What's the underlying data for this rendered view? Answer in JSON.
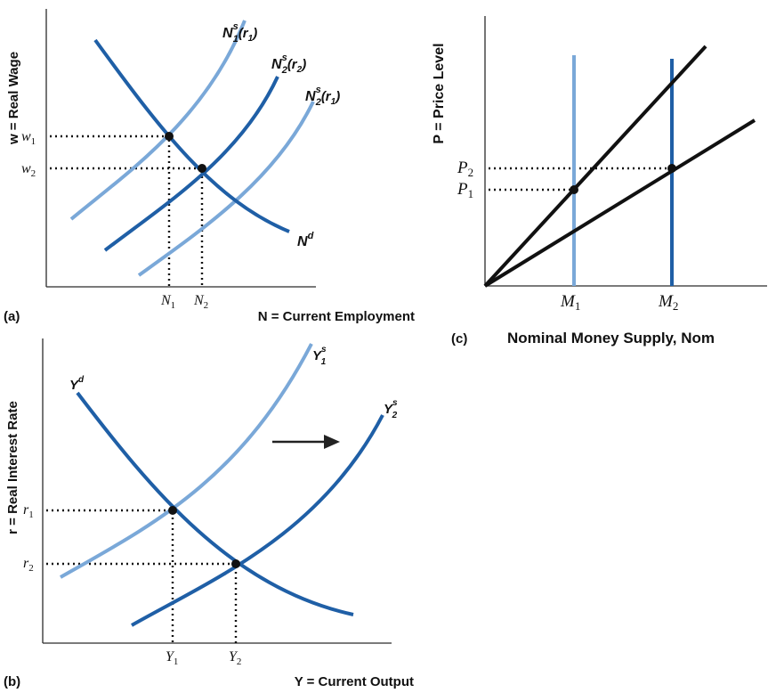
{
  "colors": {
    "dark_blue": "#1f5fa6",
    "light_blue": "#7aa8d8",
    "black": "#111111",
    "axis": "#2b2b2b",
    "arrow": "#222222"
  },
  "panel_a": {
    "panel_label": "(a)",
    "y_axis_label": "w = Real Wage",
    "x_axis_label": "N = Current Employment",
    "curves": {
      "ns1_label_main": "N",
      "ns1_label_sup": "s",
      "ns1_label_sub": "1",
      "ns1_label_arg": "(r",
      "ns1_label_arg_sub": "1",
      "ns1_label_close": ")",
      "ns2r2_label_main": "N",
      "ns2r2_label_sup": "s",
      "ns2r2_label_sub": "2",
      "ns2r2_label_arg": "(r",
      "ns2r2_label_arg_sub": "2",
      "ns2r2_label_close": ")",
      "ns2r1_label_main": "N",
      "ns2r1_label_sup": "s",
      "ns2r1_label_sub": "2",
      "ns2r1_label_arg": "(r",
      "ns2r1_label_arg_sub": "1",
      "ns2r1_label_close": ")",
      "nd_label_main": "N",
      "nd_label_sup": "d"
    },
    "ticks": {
      "w1_main": "w",
      "w1_sub": "1",
      "w2_main": "w",
      "w2_sub": "2",
      "n1_main": "N",
      "n1_sub": "1",
      "n2_main": "N",
      "n2_sub": "2"
    }
  },
  "panel_b": {
    "panel_label": "(b)",
    "y_axis_label": "r = Real Interest Rate",
    "x_axis_label": "Y = Current Output",
    "curves": {
      "yd_label_main": "Y",
      "yd_label_sup": "d",
      "ys1_label_main": "Y",
      "ys1_label_sup": "s",
      "ys1_label_sub": "1",
      "ys2_label_main": "Y",
      "ys2_label_sup": "s",
      "ys2_label_sub": "2"
    },
    "ticks": {
      "r1_main": "r",
      "r1_sub": "1",
      "r2_main": "r",
      "r2_sub": "2",
      "y1_main": "Y",
      "y1_sub": "1",
      "y2_main": "Y",
      "y2_sub": "2"
    }
  },
  "panel_c": {
    "panel_label": "(c)",
    "y_axis_label": "P = Price Level",
    "x_axis_label": "Nominal Money Supply, Nom",
    "ticks": {
      "p2_main": "P",
      "p2_sub": "2",
      "p1_main": "P",
      "p1_sub": "1",
      "m1_main": "M",
      "m1_sub": "1",
      "m2_main": "M",
      "m2_sub": "2"
    }
  }
}
